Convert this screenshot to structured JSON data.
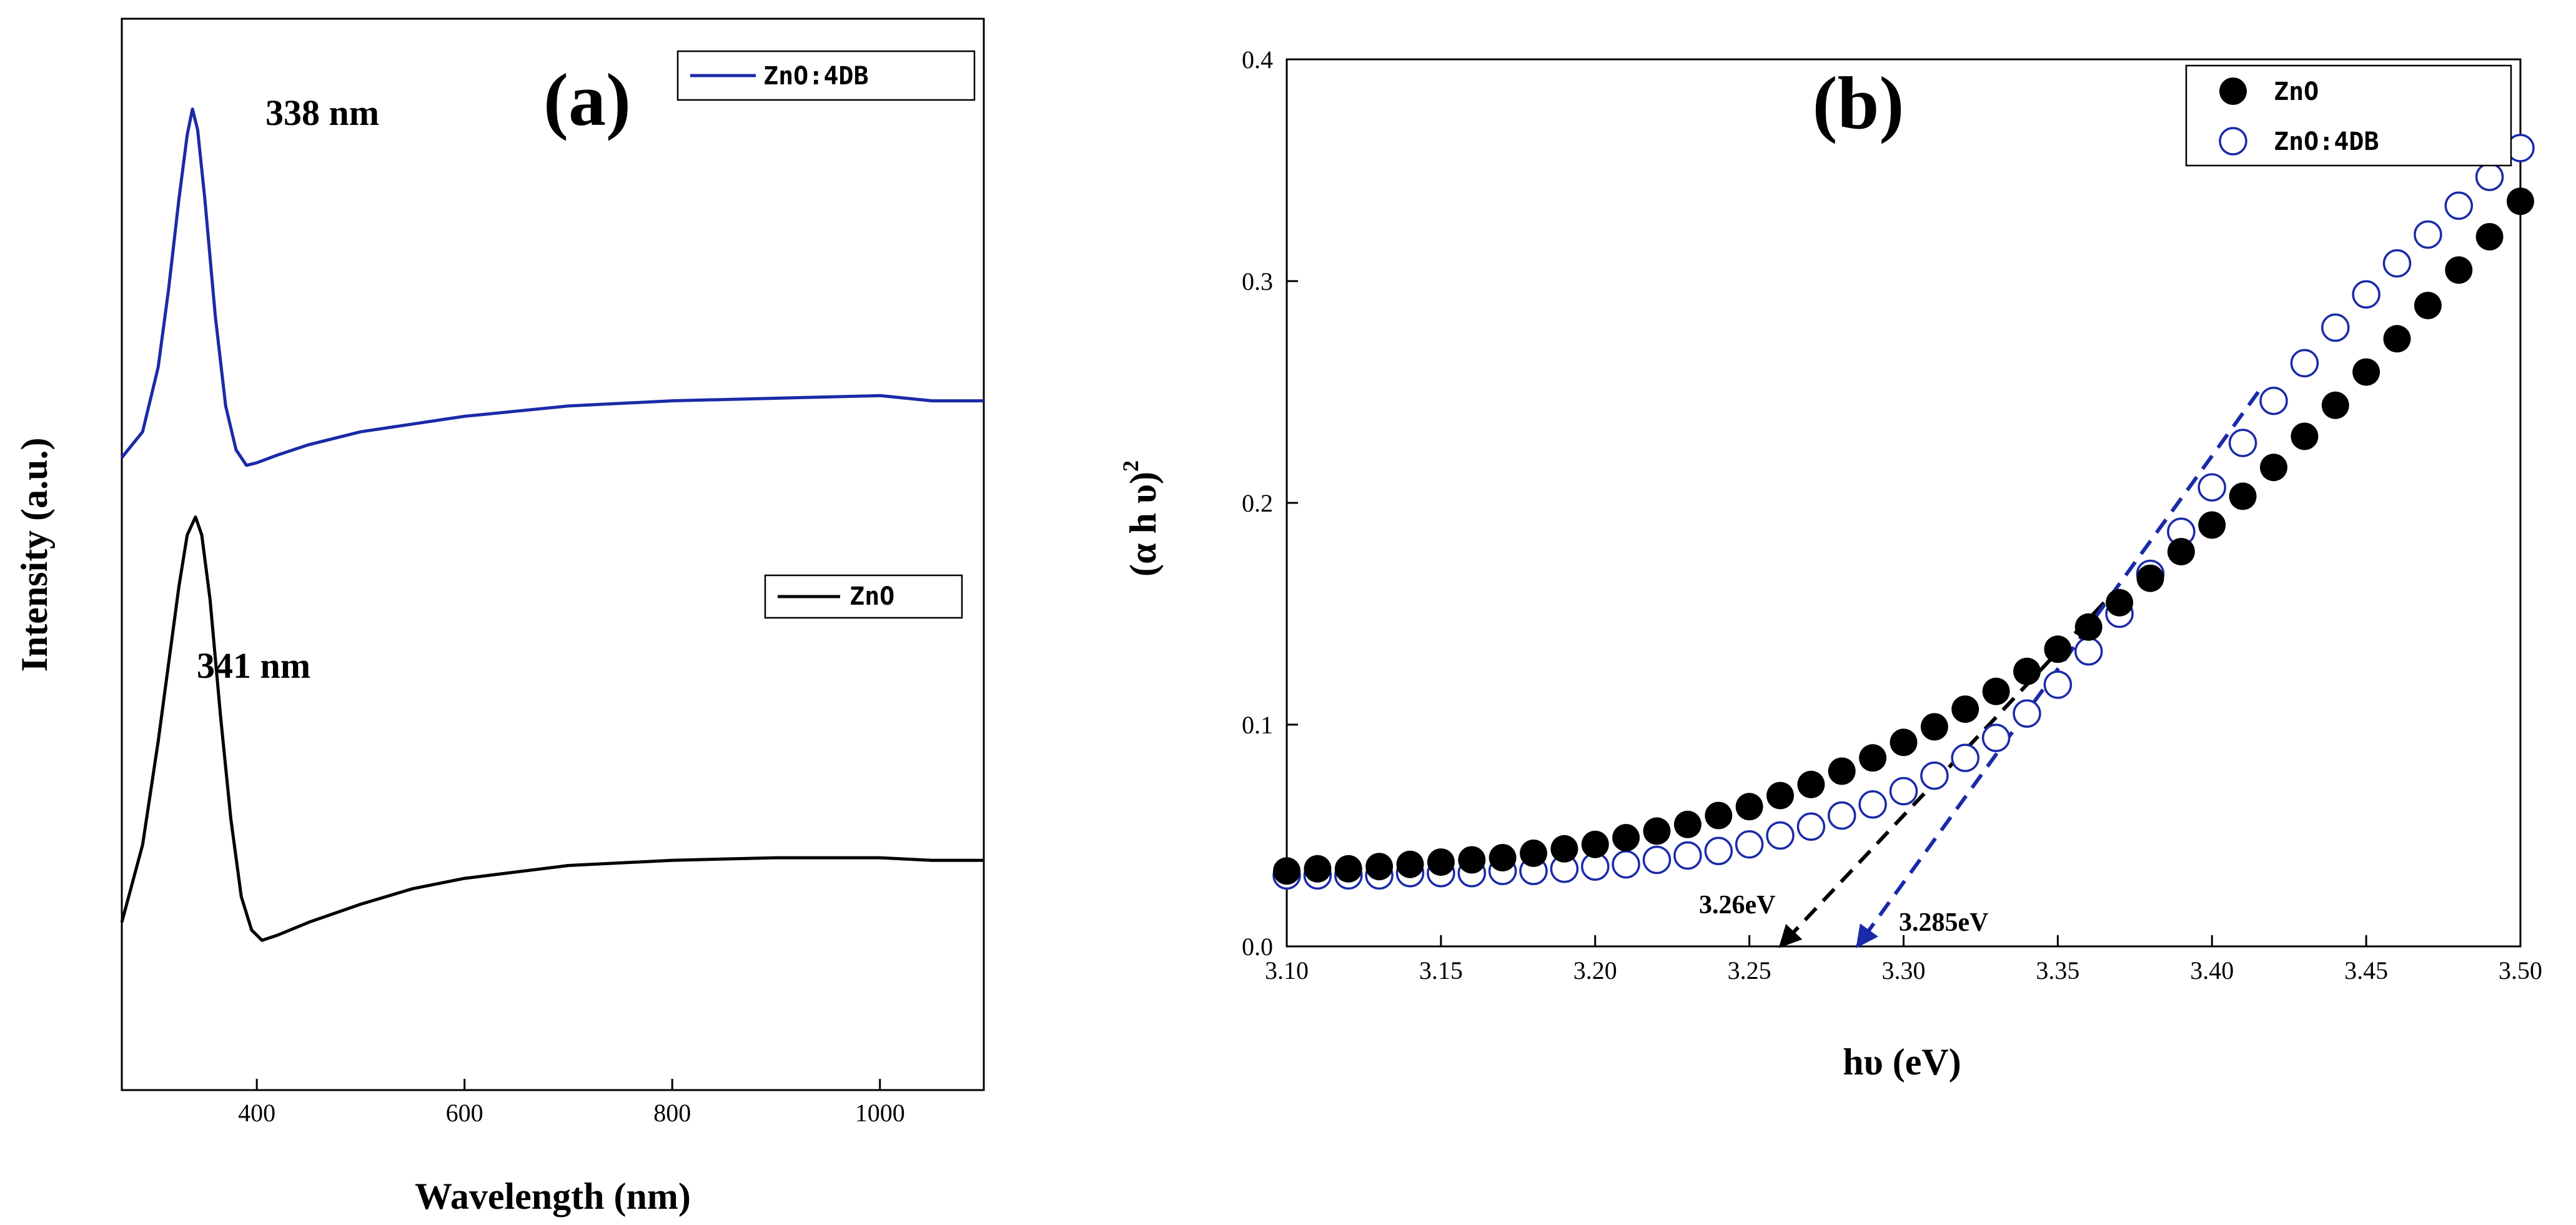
{
  "colors": {
    "zno": "#000000",
    "zno4db": "#1a2aa8"
  },
  "chart_data": [
    {
      "id": "a",
      "type": "line",
      "panel_label": "(a)",
      "xlabel": "Wavelength (nm)",
      "ylabel": "Intensity (a.u.)",
      "xlim": [
        270,
        1100
      ],
      "ylim": [
        -0.6,
        3.55
      ],
      "xticks": [
        400,
        600,
        800,
        1000
      ],
      "yticks": [],
      "series": [
        {
          "name": "ZnO:4DB",
          "color": "#1a2aa8",
          "peak_label": "338 nm",
          "x": [
            270,
            290,
            305,
            315,
            325,
            333,
            338,
            343,
            350,
            360,
            370,
            380,
            390,
            400,
            420,
            450,
            500,
            550,
            600,
            700,
            800,
            900,
            1000,
            1050,
            1100
          ],
          "y": [
            1.85,
            1.95,
            2.2,
            2.5,
            2.85,
            3.1,
            3.2,
            3.12,
            2.85,
            2.4,
            2.05,
            1.88,
            1.82,
            1.83,
            1.86,
            1.9,
            1.95,
            1.98,
            2.01,
            2.05,
            2.07,
            2.08,
            2.09,
            2.07,
            2.07
          ]
        },
        {
          "name": "ZnO",
          "color": "#000000",
          "peak_label": "341 nm",
          "x": [
            270,
            290,
            305,
            315,
            325,
            333,
            341,
            347,
            355,
            365,
            375,
            385,
            395,
            405,
            420,
            450,
            500,
            550,
            600,
            700,
            800,
            900,
            1000,
            1050,
            1100
          ],
          "y": [
            0.05,
            0.35,
            0.75,
            1.05,
            1.35,
            1.55,
            1.62,
            1.55,
            1.3,
            0.85,
            0.45,
            0.15,
            0.02,
            -0.02,
            0.0,
            0.05,
            0.12,
            0.18,
            0.22,
            0.27,
            0.29,
            0.3,
            0.3,
            0.29,
            0.29
          ]
        }
      ]
    },
    {
      "id": "b",
      "type": "scatter",
      "panel_label": "(b)",
      "xlabel": "hυ (eV)",
      "ylabel": "(α h υ)",
      "ylabel_sup": "2",
      "xlim": [
        3.1,
        3.5
      ],
      "ylim": [
        0.0,
        0.4
      ],
      "xticks": [
        3.1,
        3.15,
        3.2,
        3.25,
        3.3,
        3.35,
        3.4,
        3.45,
        3.5
      ],
      "xtick_labels": [
        "3.10",
        "3.15",
        "3.20",
        "3.25",
        "3.30",
        "3.35",
        "3.40",
        "3.45",
        "3.50"
      ],
      "yticks": [
        0.0,
        0.1,
        0.2,
        0.3,
        0.4
      ],
      "ytick_labels": [
        "0.0",
        "0.1",
        "0.2",
        "0.3",
        "0.4"
      ],
      "series": [
        {
          "name": "ZnO",
          "marker": "filled-circle",
          "color": "#000000",
          "x": [
            3.1,
            3.11,
            3.12,
            3.13,
            3.14,
            3.15,
            3.16,
            3.17,
            3.18,
            3.19,
            3.2,
            3.21,
            3.22,
            3.23,
            3.24,
            3.25,
            3.26,
            3.27,
            3.28,
            3.29,
            3.3,
            3.31,
            3.32,
            3.33,
            3.34,
            3.35,
            3.36,
            3.37,
            3.38,
            3.39,
            3.4,
            3.41,
            3.42,
            3.43,
            3.44,
            3.45,
            3.46,
            3.47,
            3.48,
            3.49,
            3.5
          ],
          "y": [
            0.034,
            0.035,
            0.035,
            0.036,
            0.037,
            0.038,
            0.039,
            0.04,
            0.042,
            0.044,
            0.046,
            0.049,
            0.052,
            0.055,
            0.059,
            0.063,
            0.068,
            0.073,
            0.079,
            0.085,
            0.092,
            0.099,
            0.107,
            0.115,
            0.124,
            0.134,
            0.144,
            0.155,
            0.166,
            0.178,
            0.19,
            0.203,
            0.216,
            0.23,
            0.244,
            0.259,
            0.274,
            0.289,
            0.305,
            0.32,
            0.336
          ]
        },
        {
          "name": "ZnO:4DB",
          "marker": "open-circle",
          "color": "#1a2aa8",
          "x": [
            3.1,
            3.11,
            3.12,
            3.13,
            3.14,
            3.15,
            3.16,
            3.17,
            3.18,
            3.19,
            3.2,
            3.21,
            3.22,
            3.23,
            3.24,
            3.25,
            3.26,
            3.27,
            3.28,
            3.29,
            3.3,
            3.31,
            3.32,
            3.33,
            3.34,
            3.35,
            3.36,
            3.37,
            3.38,
            3.39,
            3.4,
            3.41,
            3.42,
            3.43,
            3.44,
            3.45,
            3.46,
            3.47,
            3.48,
            3.49,
            3.5
          ],
          "y": [
            0.032,
            0.032,
            0.032,
            0.032,
            0.033,
            0.033,
            0.033,
            0.034,
            0.034,
            0.035,
            0.036,
            0.037,
            0.039,
            0.041,
            0.043,
            0.046,
            0.05,
            0.054,
            0.059,
            0.064,
            0.07,
            0.077,
            0.085,
            0.094,
            0.105,
            0.118,
            0.133,
            0.15,
            0.168,
            0.187,
            0.207,
            0.227,
            0.246,
            0.263,
            0.279,
            0.294,
            0.308,
            0.321,
            0.334,
            0.347,
            0.36
          ]
        }
      ],
      "fit_lines": [
        {
          "name": "ZnO fit",
          "color": "#000000",
          "x": [
            3.26,
            3.365
          ],
          "y": [
            0.0,
            0.155
          ]
        },
        {
          "name": "ZnO:4DB fit",
          "color": "#1a2aa8",
          "x": [
            3.285,
            3.415
          ],
          "y": [
            0.0,
            0.25
          ]
        }
      ],
      "annotations": [
        {
          "text": "3.26eV",
          "x": 3.26,
          "y": 0.0
        },
        {
          "text": "3.285eV",
          "x": 3.285,
          "y": 0.0
        }
      ]
    }
  ]
}
